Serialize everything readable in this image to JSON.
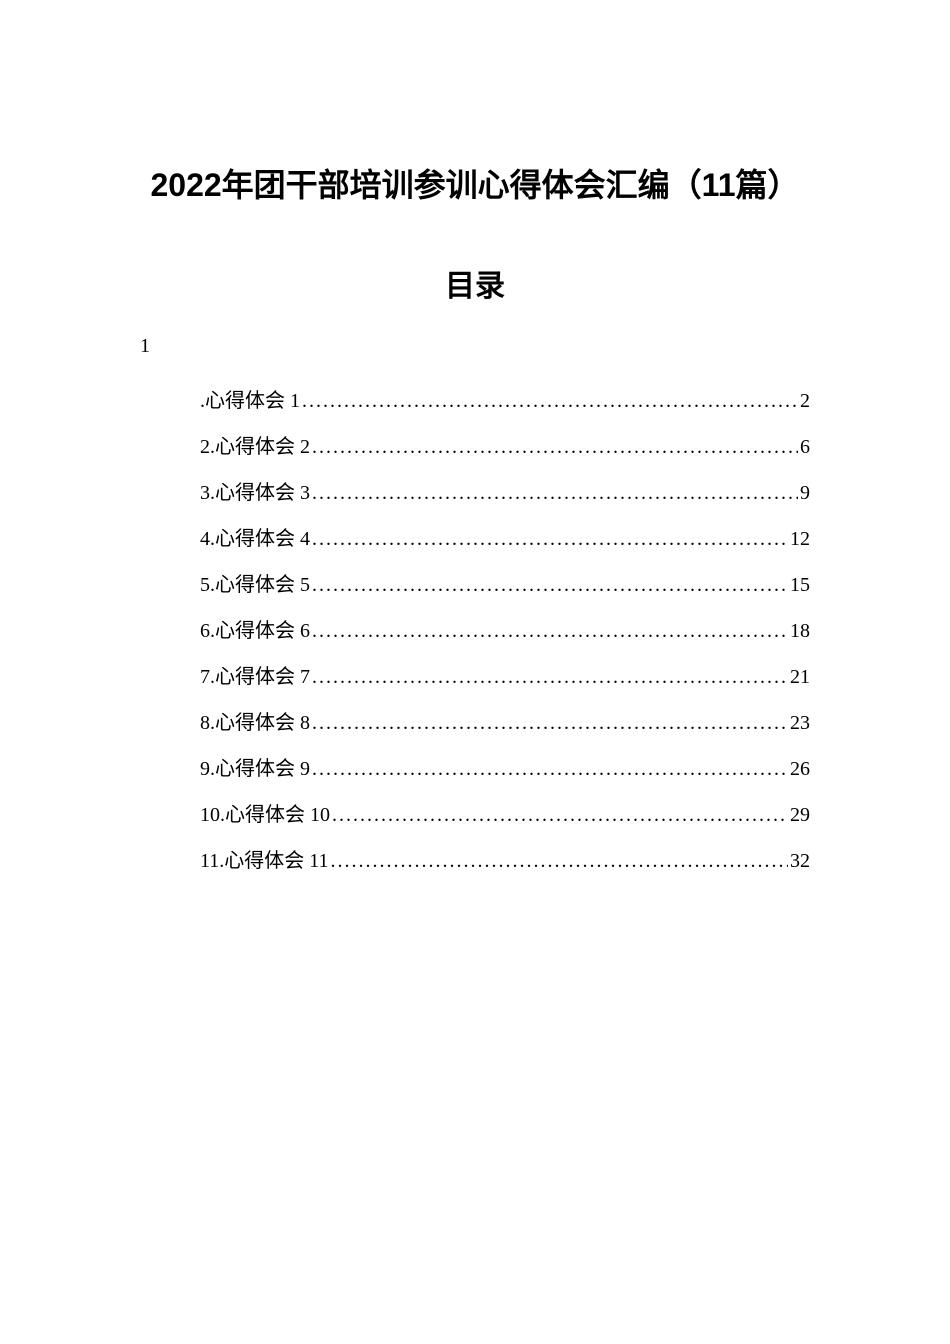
{
  "document": {
    "title": "2022年团干部培训参训心得体会汇编（11篇）",
    "toc_heading": "目录",
    "toc_prefix": "1",
    "colors": {
      "background": "#ffffff",
      "text": "#000000"
    },
    "typography": {
      "title_fontsize": 32,
      "toc_heading_fontsize": 30,
      "entry_fontsize": 20,
      "title_font": "SimHei",
      "body_font": "SimSun"
    },
    "entries": [
      {
        "label": ".心得体会 1",
        "page": "2"
      },
      {
        "label": "2.心得体会 2",
        "page": "6"
      },
      {
        "label": "3.心得体会 3",
        "page": "9"
      },
      {
        "label": "4.心得体会 4",
        "page": "12"
      },
      {
        "label": "5.心得体会 5",
        "page": "15"
      },
      {
        "label": "6.心得体会 6",
        "page": "18"
      },
      {
        "label": "7.心得体会 7",
        "page": "21"
      },
      {
        "label": "8.心得体会 8",
        "page": "23"
      },
      {
        "label": "9.心得体会 9",
        "page": "26"
      },
      {
        "label": "10.心得体会 10",
        "page": "29"
      },
      {
        "label": "11.心得体会 11",
        "page": "32"
      }
    ]
  }
}
